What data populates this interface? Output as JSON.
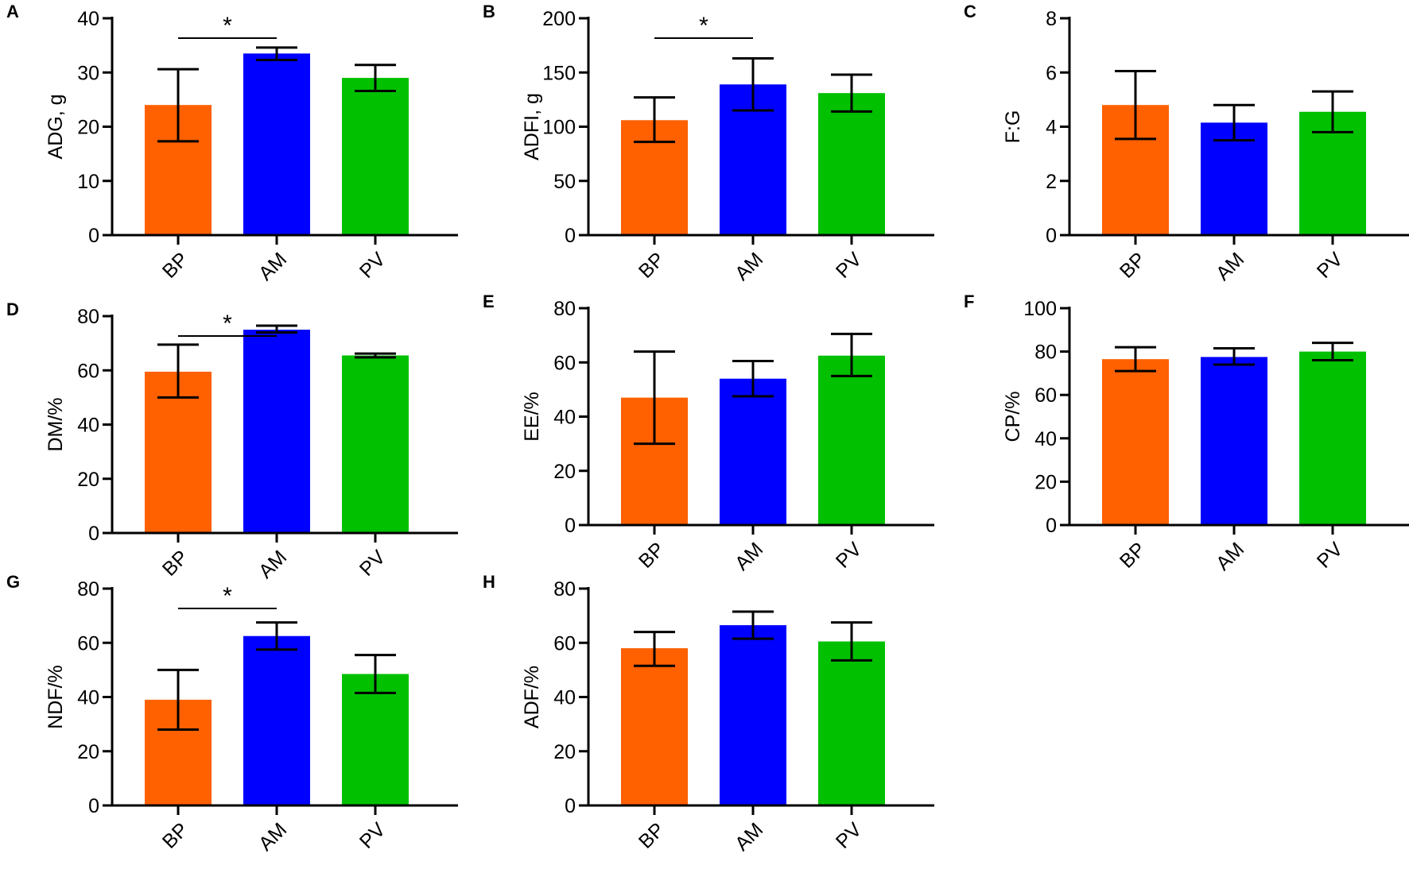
{
  "chart_data": [
    {
      "type": "bar",
      "panel": "A",
      "ylabel": "ADG, g",
      "categories": [
        "BP",
        "AM",
        "PV"
      ],
      "values": [
        24,
        33.5,
        29
      ],
      "err_low": [
        17.3,
        32.3,
        26.6
      ],
      "err_high": [
        30.6,
        34.6,
        31.4
      ],
      "ylim": [
        0,
        40
      ],
      "yticks": [
        0,
        10,
        20,
        30,
        40
      ],
      "significance": [
        {
          "from": "BP",
          "to": "AM",
          "label": "*"
        }
      ]
    },
    {
      "type": "bar",
      "panel": "B",
      "ylabel": "ADFI, g",
      "categories": [
        "BP",
        "AM",
        "PV"
      ],
      "values": [
        106,
        139,
        131
      ],
      "err_low": [
        86,
        115,
        114
      ],
      "err_high": [
        127,
        163,
        148
      ],
      "ylim": [
        0,
        200
      ],
      "yticks": [
        0,
        50,
        100,
        150,
        200
      ],
      "significance": [
        {
          "from": "BP",
          "to": "AM",
          "label": "*"
        }
      ]
    },
    {
      "type": "bar",
      "panel": "C",
      "ylabel": "F:G",
      "categories": [
        "BP",
        "AM",
        "PV"
      ],
      "values": [
        4.8,
        4.15,
        4.55
      ],
      "err_low": [
        3.55,
        3.5,
        3.8
      ],
      "err_high": [
        6.05,
        4.8,
        5.3
      ],
      "ylim": [
        0,
        8
      ],
      "yticks": [
        0,
        2,
        4,
        6,
        8
      ],
      "significance": []
    },
    {
      "type": "bar",
      "panel": "D",
      "ylabel": "DM/%",
      "categories": [
        "BP",
        "AM",
        "PV"
      ],
      "values": [
        59.5,
        75,
        65.5
      ],
      "err_low": [
        50,
        74,
        64.8
      ],
      "err_high": [
        69.5,
        76.5,
        66.2
      ],
      "ylim": [
        0,
        80
      ],
      "yticks": [
        0,
        20,
        40,
        60,
        80
      ],
      "significance": [
        {
          "from": "BP",
          "to": "AM",
          "label": "*"
        }
      ]
    },
    {
      "type": "bar",
      "panel": "E",
      "ylabel": "EE/%",
      "categories": [
        "BP",
        "AM",
        "PV"
      ],
      "values": [
        47,
        54,
        62.5
      ],
      "err_low": [
        30,
        47.5,
        55
      ],
      "err_high": [
        64,
        60.5,
        70.5
      ],
      "ylim": [
        0,
        80
      ],
      "yticks": [
        0,
        20,
        40,
        60,
        80
      ],
      "significance": []
    },
    {
      "type": "bar",
      "panel": "F",
      "ylabel": "CP/%",
      "categories": [
        "BP",
        "AM",
        "PV"
      ],
      "values": [
        76.5,
        77.5,
        80
      ],
      "err_low": [
        71,
        74,
        76
      ],
      "err_high": [
        82,
        81.5,
        84
      ],
      "ylim": [
        0,
        100
      ],
      "yticks": [
        0,
        20,
        40,
        60,
        80,
        100
      ],
      "significance": []
    },
    {
      "type": "bar",
      "panel": "G",
      "ylabel": "NDF/%",
      "categories": [
        "BP",
        "AM",
        "PV"
      ],
      "values": [
        39,
        62.5,
        48.5
      ],
      "err_low": [
        28,
        57.5,
        41.5
      ],
      "err_high": [
        50,
        67.5,
        55.5
      ],
      "ylim": [
        0,
        80
      ],
      "yticks": [
        0,
        20,
        40,
        60,
        80
      ],
      "significance": [
        {
          "from": "BP",
          "to": "AM",
          "label": "*"
        }
      ]
    },
    {
      "type": "bar",
      "panel": "H",
      "ylabel": "ADF/%",
      "categories": [
        "BP",
        "AM",
        "PV"
      ],
      "values": [
        58,
        66.5,
        60.5
      ],
      "err_low": [
        51.5,
        61.5,
        53.5
      ],
      "err_high": [
        64,
        71.5,
        67.5
      ],
      "ylim": [
        0,
        80
      ],
      "yticks": [
        0,
        20,
        40,
        60,
        80
      ],
      "significance": []
    }
  ],
  "colors": {
    "BP": "#ff6000",
    "AM": "#0000ff",
    "PV": "#00c000"
  }
}
